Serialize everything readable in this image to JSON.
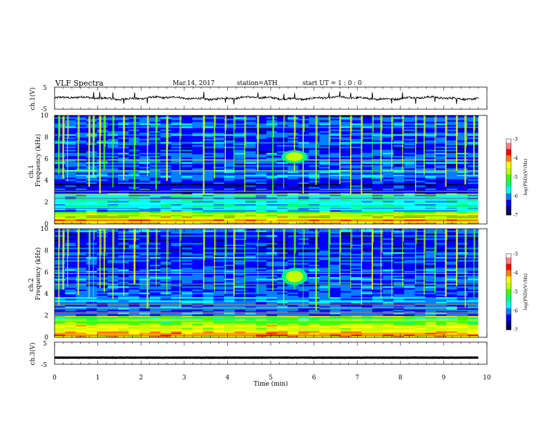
{
  "header": {
    "title": "VLF  Spectra",
    "date": "Mar.14, 2017",
    "station": "station=ATH",
    "start": "start  UT  =   1 : 0  : 0"
  },
  "colors": {
    "colormap": [
      "#000033",
      "#00007a",
      "#0000ff",
      "#0080ff",
      "#00ffff",
      "#00ff80",
      "#40ff00",
      "#c0ff00",
      "#ffff00",
      "#ff8000",
      "#ff0000",
      "#ff8080",
      "#ffffff"
    ],
    "trace": "#000000"
  },
  "chart_data": [
    {
      "type": "line",
      "name": "ch1-waveform",
      "ylabel": "ch.1(V)",
      "ylim": [
        -5,
        5
      ],
      "yticks": [
        "5",
        "-5"
      ],
      "xlim": [
        0,
        10
      ],
      "baseline": 0,
      "end_min": 9.8,
      "spikes_min": [
        0.9,
        1.05,
        1.35,
        1.6,
        1.85,
        2.15,
        3.45,
        3.95,
        4.15,
        4.7,
        5.3,
        5.55,
        6.35,
        6.6,
        6.85,
        7.35,
        7.8,
        8.05,
        8.35,
        8.8,
        9.3
      ]
    },
    {
      "type": "heatmap",
      "name": "ch1-spectrogram",
      "ylabel": "ch.1\nFrequency (kHz)",
      "xlim": [
        0,
        10
      ],
      "ylim": [
        0,
        10
      ],
      "yticks": [
        "0",
        "2",
        "4",
        "6",
        "8",
        "10"
      ],
      "colorbar": {
        "label": "log(PSD)(V²/Hz)",
        "range": [
          -7,
          -3
        ],
        "ticks": [
          "-3",
          "-4",
          "-5",
          "-6",
          "-7"
        ]
      },
      "sferic_min": [
        0.1,
        0.2,
        0.3,
        0.55,
        0.8,
        0.9,
        1.05,
        1.15,
        1.35,
        1.6,
        1.85,
        2.15,
        2.35,
        2.6,
        2.9,
        3.45,
        3.7,
        3.95,
        4.15,
        4.4,
        4.7,
        5.05,
        5.3,
        5.55,
        5.75,
        6.05,
        6.35,
        6.6,
        6.85,
        7.1,
        7.35,
        7.55,
        7.8,
        8.05,
        8.35,
        8.55,
        8.8,
        9.05,
        9.3,
        9.5,
        9.7
      ],
      "emission": {
        "t_min": [
          5.25,
          5.85
        ],
        "f_khz": [
          5.6,
          6.8
        ]
      },
      "end_min": 9.8
    },
    {
      "type": "heatmap",
      "name": "ch2-spectrogram",
      "ylabel": "ch.2\nFrequency (kHz)",
      "xlim": [
        0,
        10
      ],
      "ylim": [
        0,
        10
      ],
      "yticks": [
        "0",
        "2",
        "4",
        "6",
        "8",
        "10"
      ],
      "colorbar": {
        "label": "log(PSD)(V²/Hz)",
        "range": [
          -7,
          -3
        ],
        "ticks": [
          "-3",
          "-4",
          "-5",
          "-6",
          "-7"
        ]
      },
      "sferic_min": [
        0.1,
        0.2,
        0.3,
        0.55,
        0.8,
        0.9,
        1.05,
        1.15,
        1.35,
        1.6,
        1.85,
        2.15,
        2.35,
        2.6,
        2.9,
        3.45,
        3.7,
        3.95,
        4.15,
        4.4,
        4.7,
        5.05,
        5.3,
        5.55,
        5.75,
        6.05,
        6.35,
        6.6,
        6.85,
        7.1,
        7.35,
        7.55,
        7.8,
        8.05,
        8.35,
        8.55,
        8.8,
        9.05,
        9.3,
        9.5,
        9.7
      ],
      "emission": {
        "t_min": [
          5.25,
          5.85
        ],
        "f_khz": [
          4.8,
          6.4
        ]
      },
      "end_min": 9.8
    },
    {
      "type": "line",
      "name": "ch3-waveform",
      "ylabel": "ch.3(V)",
      "ylim": [
        -5,
        5
      ],
      "yticks": [
        "5",
        "-5"
      ],
      "xlim": [
        0,
        10
      ],
      "baseline": -2,
      "end_min": 9.8
    }
  ],
  "xaxis": {
    "label": "Time  (min)",
    "ticks": [
      "0",
      "1",
      "2",
      "3",
      "4",
      "5",
      "6",
      "7",
      "8",
      "9",
      "10"
    ]
  }
}
